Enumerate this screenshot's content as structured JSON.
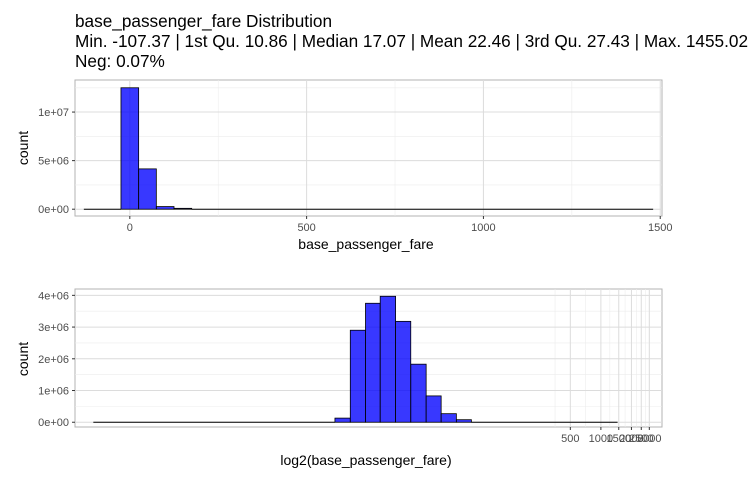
{
  "chart_data": [
    {
      "type": "bar",
      "title_lines": [
        "base_passenger_fare Distribution",
        "Min. -107.37 | 1st Qu. 10.86 | Median 17.07 | Mean 22.46 | 3rd Qu. 27.43 | Max. 1455.02",
        "Neg: 0.07%"
      ],
      "xlabel": "base_passenger_fare",
      "ylabel": "count",
      "xlim": [
        -155,
        1505
      ],
      "ylim": [
        -700000,
        13300000
      ],
      "x_ticks": [
        0,
        500,
        1000,
        1500
      ],
      "x_tick_labels": [
        "0",
        "500",
        "1000",
        "1500"
      ],
      "y_ticks": [
        0,
        5000000,
        10000000
      ],
      "y_tick_labels": [
        "0e+00",
        "5e+06",
        "1e+07"
      ],
      "grid": true,
      "fill_color": "#0000ff",
      "fill_opacity": 0.78,
      "bin_width": 50,
      "bins": [
        {
          "x0": -130,
          "x1": -25,
          "count": 0
        },
        {
          "x0": -25,
          "x1": 25,
          "count": 12500000
        },
        {
          "x0": 25,
          "x1": 75,
          "count": 4150000
        },
        {
          "x0": 75,
          "x1": 125,
          "count": 270000
        },
        {
          "x0": 125,
          "x1": 175,
          "count": 90000
        },
        {
          "x0": 175,
          "x1": 1480,
          "count": 0
        }
      ]
    },
    {
      "type": "bar",
      "xlabel": "log2(base_passenger_fare)",
      "ylabel": "count",
      "x_scale": "log2",
      "xlim": [
        0.0066,
        4000
      ],
      "ylim": [
        -150000,
        4200000
      ],
      "x_ticks": [
        500,
        1000,
        1500,
        2000,
        2500,
        3000
      ],
      "x_tick_labels": [
        "500",
        "1000",
        "1500",
        "2000",
        "2500",
        "3000"
      ],
      "y_ticks": [
        0,
        1000000,
        2000000,
        3000000,
        4000000
      ],
      "y_tick_labels": [
        "0e+00",
        "1e+06",
        "2e+06",
        "3e+06",
        "4e+06"
      ],
      "grid": true,
      "fill_color": "#0000ff",
      "fill_opacity": 0.78,
      "bins": [
        {
          "x0": 0.01,
          "x1": 2.4,
          "count": 0
        },
        {
          "x0": 2.4,
          "x1": 3.4,
          "count": 130000
        },
        {
          "x0": 3.4,
          "x1": 4.8,
          "count": 2900000
        },
        {
          "x0": 4.8,
          "x1": 6.7,
          "count": 3750000
        },
        {
          "x0": 6.7,
          "x1": 9.5,
          "count": 3970000
        },
        {
          "x0": 9.5,
          "x1": 13.4,
          "count": 3180000
        },
        {
          "x0": 13.4,
          "x1": 19,
          "count": 1830000
        },
        {
          "x0": 19,
          "x1": 26.7,
          "count": 830000
        },
        {
          "x0": 26.7,
          "x1": 37.7,
          "count": 270000
        },
        {
          "x0": 37.7,
          "x1": 53,
          "count": 80000
        },
        {
          "x0": 53,
          "x1": 1460,
          "count": 0
        }
      ]
    }
  ]
}
